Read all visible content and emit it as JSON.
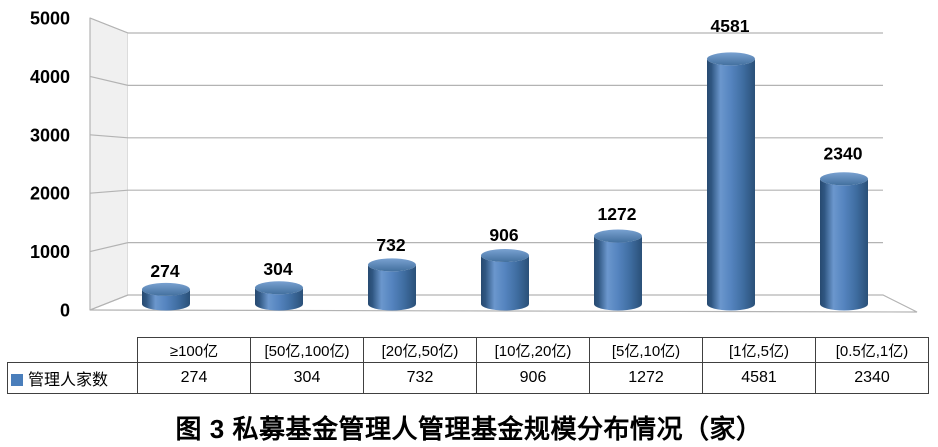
{
  "chart_data": {
    "type": "bar",
    "subtype": "3d-cylinder",
    "title": "图 3 私募基金管理人管理基金规模分布情况（家）",
    "categories": [
      "≥100亿",
      "[50亿,100亿)",
      "[20亿,50亿)",
      "[10亿,20亿)",
      "[5亿,10亿)",
      "[1亿,5亿)",
      "[0.5亿,1亿)"
    ],
    "series": [
      {
        "name": "管理人家数",
        "values": [
          274,
          304,
          732,
          906,
          1272,
          4581,
          2340
        ]
      }
    ],
    "y_ticks": [
      0,
      1000,
      2000,
      3000,
      4000,
      5000
    ],
    "ylim": [
      0,
      5000
    ],
    "grid": true,
    "data_labels": true,
    "legend_position": "table-row-left",
    "colors": {
      "bar": "#4f81bd",
      "bar_top": "#4d80bb",
      "grid": "#b3b3b3",
      "wall": "#f0f0f0",
      "legend_marker": "#4a7ebb",
      "text": "#000000",
      "table_border": "#404040"
    }
  }
}
